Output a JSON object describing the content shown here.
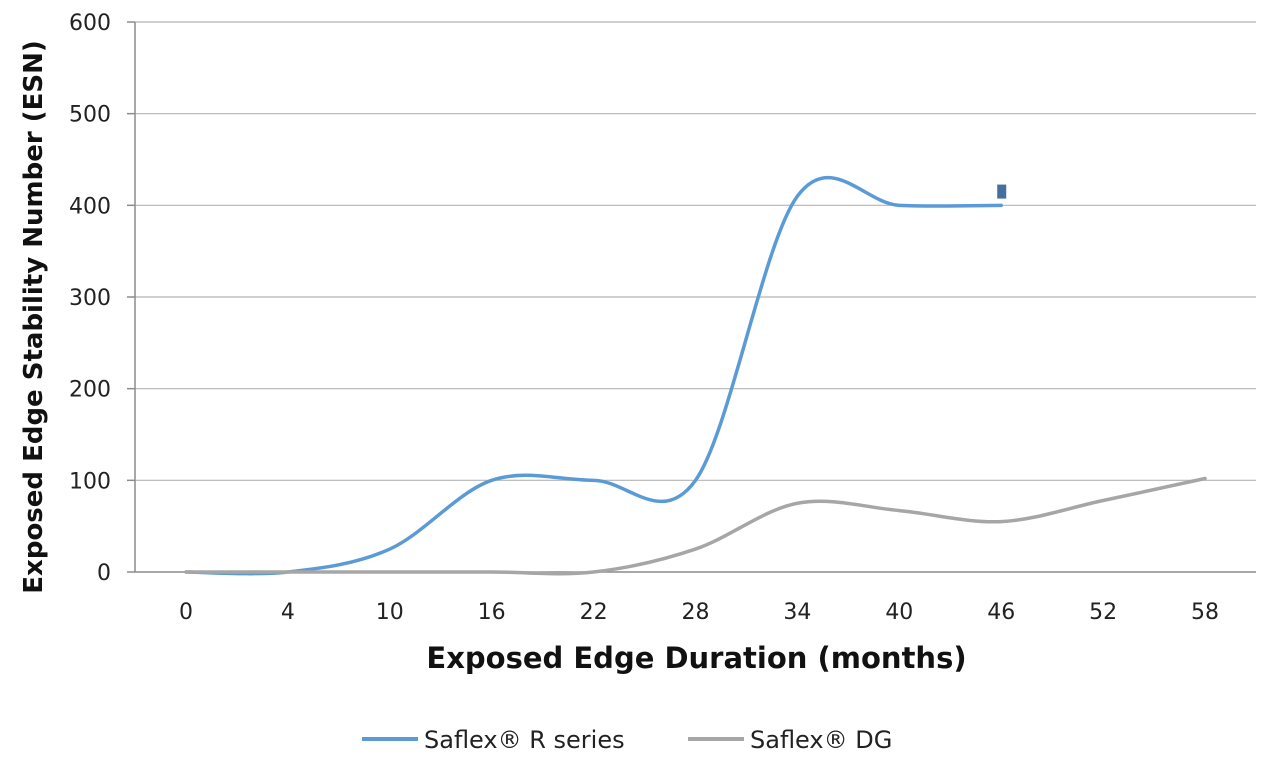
{
  "chart_data": {
    "type": "line",
    "xlabel": "Exposed Edge Duration (months)",
    "ylabel": "Exposed Edge Stability Number (ESN)",
    "categories": [
      "0",
      "4",
      "10",
      "16",
      "22",
      "28",
      "34",
      "40",
      "46",
      "52",
      "58"
    ],
    "ylim": [
      0,
      600
    ],
    "yticks": [
      0,
      100,
      200,
      300,
      400,
      500,
      600
    ],
    "grid": true,
    "legend_position": "bottom",
    "series": [
      {
        "name": "Saflex® R series",
        "color": "#5b9bd5",
        "values": [
          0,
          0,
          25,
          100,
          100,
          100,
          410,
          400,
          400,
          null,
          null
        ]
      },
      {
        "name": "Saflex® DG",
        "color": "#a6a6a6",
        "values": [
          0,
          0,
          0,
          0,
          0,
          25,
          75,
          67,
          55,
          78,
          102
        ]
      }
    ],
    "annotations": [
      {
        "type": "marker",
        "x": "46",
        "y": 415,
        "color": "#44709f"
      }
    ]
  }
}
